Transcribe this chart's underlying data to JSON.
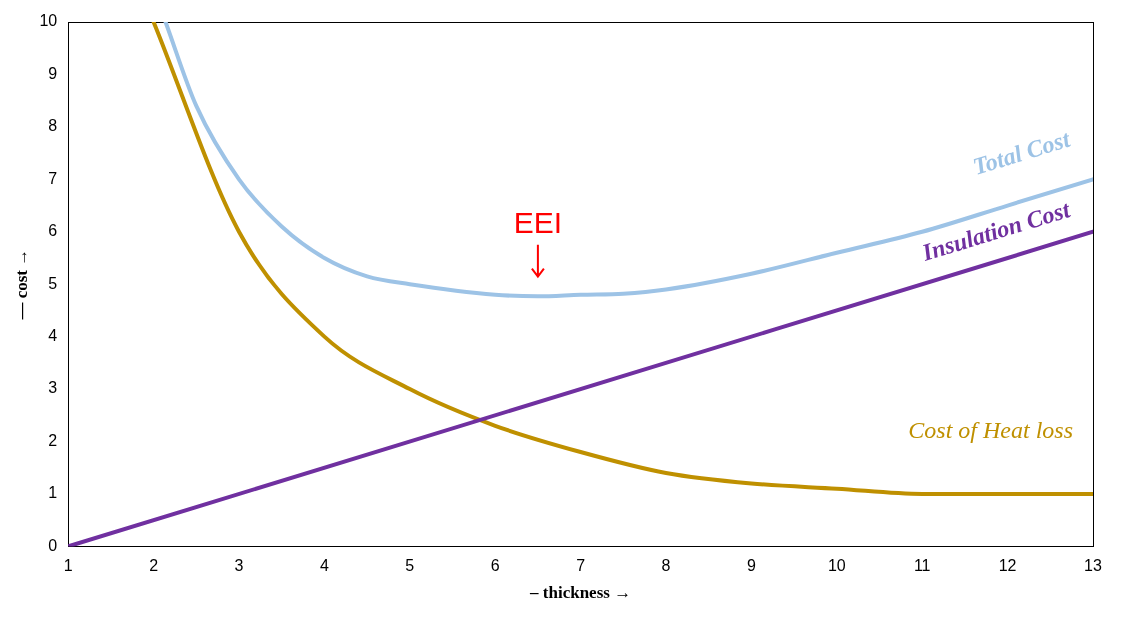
{
  "chart_data": {
    "type": "line",
    "xlabel": "– thickness →",
    "ylabel": "— cost →",
    "xlim": [
      1,
      13
    ],
    "ylim": [
      0,
      10
    ],
    "xticks": [
      1,
      2,
      3,
      4,
      5,
      6,
      7,
      8,
      9,
      10,
      11,
      12,
      13
    ],
    "yticks": [
      0,
      1,
      2,
      3,
      4,
      5,
      6,
      7,
      8,
      9,
      10
    ],
    "grid": false,
    "legend": false,
    "marker": "none",
    "line_style": "solid",
    "series": [
      {
        "name": "Total Cost",
        "color": "#9dc3e6",
        "x": [
          2.14,
          2.5,
          3,
          3.5,
          4,
          4.5,
          5,
          6,
          6.5,
          7,
          7.5,
          8,
          9,
          10,
          11,
          12,
          13
        ],
        "values": [
          10,
          8.4,
          7,
          6.1,
          5.5,
          5.15,
          5,
          4.8,
          4.77,
          4.8,
          4.82,
          4.9,
          5.2,
          5.6,
          6,
          6.5,
          7
        ]
      },
      {
        "name": "Insulation Cost",
        "color": "#7030a0",
        "x": [
          1,
          13
        ],
        "values": [
          0,
          6
        ]
      },
      {
        "name": "Cost of Heat loss",
        "color": "#bf9000",
        "x": [
          2,
          3,
          4,
          5,
          6,
          7,
          8,
          9,
          10,
          11,
          12,
          13
        ],
        "values": [
          10,
          6,
          4,
          3,
          2.3,
          1.8,
          1.4,
          1.2,
          1.1,
          1,
          1,
          1
        ]
      }
    ],
    "annotations": [
      {
        "text": "EEI",
        "x": 6.5,
        "y": 4.8
      }
    ]
  }
}
